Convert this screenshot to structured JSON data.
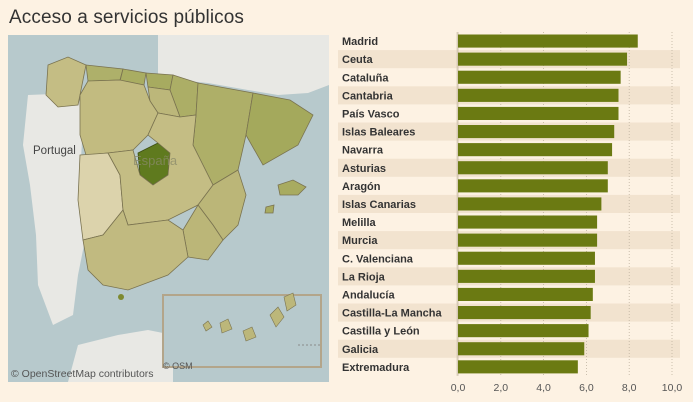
{
  "title": "Acceso a servicios públicos",
  "map": {
    "labels": {
      "portugal": "Portugal",
      "espana": "España"
    },
    "inset_osm": "© OSM",
    "attribution": "© OpenStreetMap contributors",
    "colors": {
      "water": "#b7c9cc",
      "land_outside": "#e8e8e4",
      "madrid": "#5f7a1e",
      "high": "#aeb06a",
      "mid": "#c4bd84",
      "low": "#dcd3ac",
      "border": "#7a7350"
    }
  },
  "chart_data": {
    "type": "bar",
    "orientation": "horizontal",
    "categories": [
      "Madrid",
      "Ceuta",
      "Cataluña",
      "Cantabria",
      "País Vasco",
      "Islas Baleares",
      "Navarra",
      "Asturias",
      "Aragón",
      "Islas Canarias",
      "Melilla",
      "Murcia",
      "C. Valenciana",
      "La Rioja",
      "Andalucía",
      "Castilla-La Mancha",
      "Castilla y León",
      "Galicia",
      "Extremadura"
    ],
    "values": [
      8.4,
      7.9,
      7.6,
      7.5,
      7.5,
      7.3,
      7.2,
      7.0,
      7.0,
      6.7,
      6.5,
      6.5,
      6.4,
      6.4,
      6.3,
      6.2,
      6.1,
      5.9,
      5.6
    ],
    "xlim": [
      0,
      10
    ],
    "x_ticks": [
      "0,0",
      "2,0",
      "4,0",
      "6,0",
      "8,0",
      "10,0"
    ],
    "bar_color": "#6b7a12",
    "row_band_color": "#f2e3cf",
    "grid": "dotted vertical"
  }
}
